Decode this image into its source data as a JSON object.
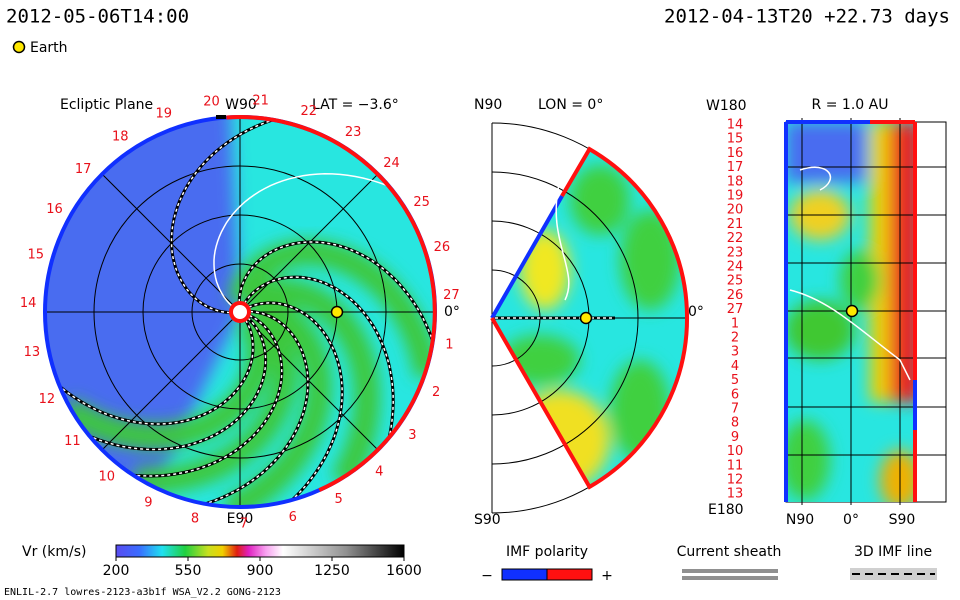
{
  "header": {
    "time": "2012-05-06T14:00",
    "reference": "2012-04-13T20 +22.73 days"
  },
  "legend": {
    "earth": "Earth"
  },
  "ecliptic": {
    "title": "Ecliptic Plane",
    "top": "W90",
    "bottom": "E90",
    "latitude": "LAT = −3.6°",
    "right": "0°",
    "carrington": [
      "1",
      "2",
      "3",
      "4",
      "5",
      "6",
      "7",
      "8",
      "9",
      "10",
      "11",
      "12",
      "13",
      "14",
      "15",
      "16",
      "17",
      "18",
      "19",
      "20",
      "21",
      "22",
      "23",
      "24",
      "25",
      "26",
      "27"
    ]
  },
  "meridional": {
    "top": "N90",
    "longitude": "LON = 0°",
    "bottom": "S90",
    "right": "0°"
  },
  "radial": {
    "title": "R = 1.0 AU",
    "top": "W180",
    "bottom": "E180",
    "x_labels": [
      "N90",
      "0°",
      "S90"
    ],
    "y_labels": [
      "14",
      "15",
      "16",
      "17",
      "18",
      "19",
      "20",
      "21",
      "22",
      "23",
      "24",
      "25",
      "26",
      "27",
      "1",
      "2",
      "3",
      "4",
      "5",
      "6",
      "7",
      "8",
      "9",
      "10",
      "11",
      "12",
      "13"
    ]
  },
  "colorbar": {
    "label": "Vr (km/s)",
    "range": [
      200,
      1600
    ],
    "ticks": [
      200,
      550,
      900,
      1250,
      1600
    ]
  },
  "imf": {
    "title": "IMF polarity",
    "minus": "−",
    "plus": "+"
  },
  "sheath": "Current sheath",
  "imf_line": "3D IMF line",
  "footer": "ENLIL-2.7 lowres-2123-a3b1f WSA_V2.2 GONG-2123"
}
